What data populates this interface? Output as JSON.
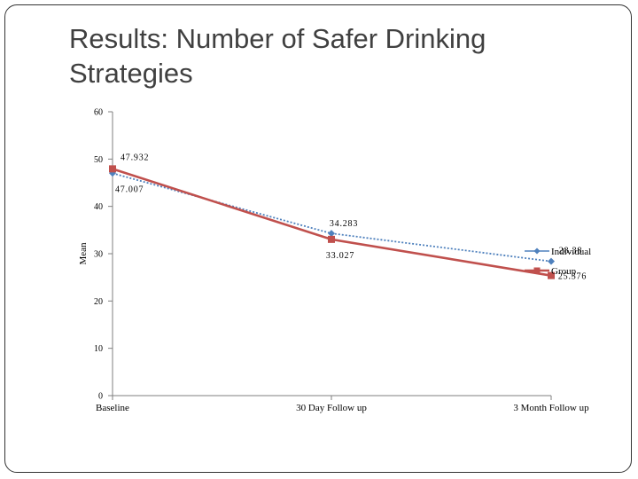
{
  "slide": {
    "title_line1": "Results: Number of Safer Drinking",
    "title_line2": "Strategies"
  },
  "chart_data": {
    "type": "line",
    "title": "Results: Number of Safer Drinking Strategies",
    "xlabel": "",
    "ylabel": "Mean",
    "categories": [
      "Baseline",
      "30 Day Follow up",
      "3 Month Follow up"
    ],
    "ylim": [
      0,
      60
    ],
    "yticks": [
      0,
      10,
      20,
      30,
      40,
      50,
      60
    ],
    "grid": false,
    "legend_position": "right",
    "series": [
      {
        "name": "Individual",
        "values": [
          47.007,
          34.283,
          28.38
        ],
        "value_labels": [
          "47.007",
          "34.283",
          "28.38"
        ],
        "color": "#4F81BD",
        "marker": "diamond",
        "line_style": "dotted"
      },
      {
        "name": "Group",
        "values": [
          47.932,
          33.027,
          25.376
        ],
        "value_labels": [
          "47.932",
          "33.027",
          "25.376"
        ],
        "color": "#C0504D",
        "marker": "square",
        "line_style": "solid"
      }
    ]
  }
}
